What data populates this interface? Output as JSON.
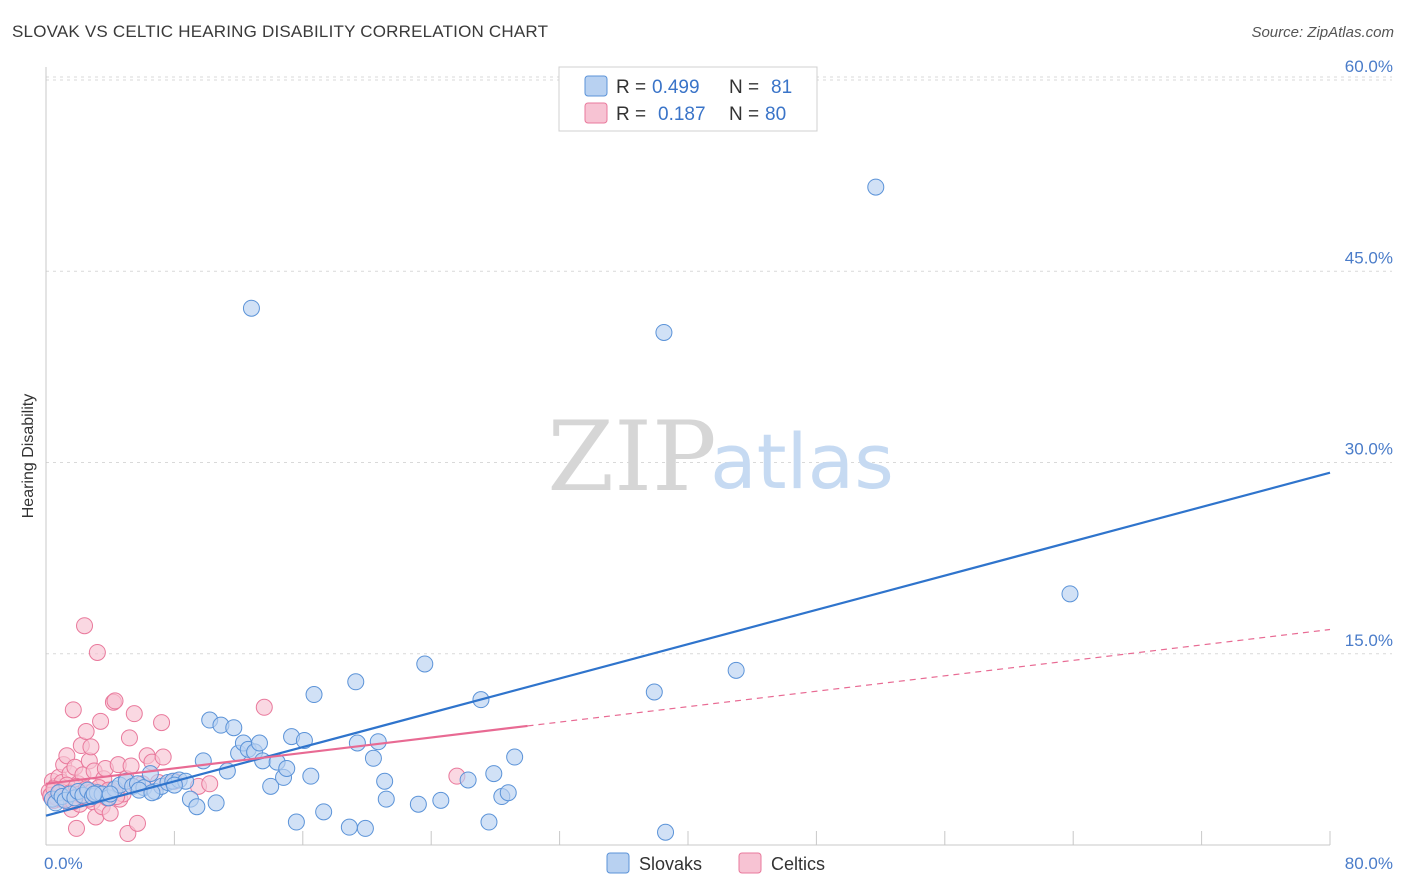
{
  "title": "SLOVAK VS CELTIC HEARING DISABILITY CORRELATION CHART",
  "source": "Source: ZipAtlas.com",
  "colors": {
    "blue": "#5b93d8",
    "blue_fill": "#b8d1f1",
    "blue_line": "#2f74cc",
    "pink": "#e9799c",
    "pink_fill": "#f7c3d3",
    "pink_line": "#e86a93",
    "axis_text": "#4a7cc9",
    "grid": "#d9d9d9"
  },
  "legend": {
    "rows": [
      {
        "r_label": "R =",
        "r_value": "0.499",
        "n_label": "N =",
        "n_value": "81"
      },
      {
        "r_label": "R =",
        "r_value": "0.187",
        "n_label": "N =",
        "n_value": "80"
      }
    ]
  },
  "watermark": {
    "zip": "ZIP",
    "atlas": "atlas"
  },
  "chart_data": {
    "type": "scatter",
    "title": "SLOVAK VS CELTIC HEARING DISABILITY CORRELATION CHART",
    "xlabel": "",
    "ylabel": "Hearing Disability",
    "xlim": [
      0,
      80
    ],
    "ylim": [
      0,
      60
    ],
    "x_tick_labels": [
      "0.0%",
      "80.0%"
    ],
    "y_ticks": [
      15,
      30,
      45,
      60
    ],
    "y_tick_labels": [
      "15.0%",
      "30.0%",
      "45.0%",
      "60.0%"
    ],
    "series": [
      {
        "name": "Slovaks",
        "trend": {
          "x": [
            0,
            80
          ],
          "y": [
            2.3,
            29.2
          ],
          "dashed_from": null
        },
        "points": [
          [
            0.4,
            3.6
          ],
          [
            0.6,
            3.3
          ],
          [
            0.8,
            4.1
          ],
          [
            1.0,
            3.8
          ],
          [
            1.2,
            3.5
          ],
          [
            1.5,
            4.0
          ],
          [
            1.8,
            3.7
          ],
          [
            2.0,
            4.2
          ],
          [
            2.3,
            3.9
          ],
          [
            2.6,
            4.3
          ],
          [
            2.9,
            3.8
          ],
          [
            3.2,
            4.1
          ],
          [
            3.5,
            4.0
          ],
          [
            3.9,
            3.7
          ],
          [
            4.3,
            4.4
          ],
          [
            4.6,
            4.7
          ],
          [
            5.0,
            5.0
          ],
          [
            5.4,
            4.6
          ],
          [
            5.7,
            4.8
          ],
          [
            6.1,
            4.5
          ],
          [
            6.5,
            5.6
          ],
          [
            6.8,
            4.2
          ],
          [
            7.2,
            4.6
          ],
          [
            7.6,
            4.9
          ],
          [
            7.9,
            5.0
          ],
          [
            8.3,
            5.1
          ],
          [
            8.7,
            5.0
          ],
          [
            9.0,
            3.6
          ],
          [
            9.4,
            3.0
          ],
          [
            9.8,
            6.6
          ],
          [
            10.2,
            9.8
          ],
          [
            10.6,
            3.3
          ],
          [
            10.9,
            9.4
          ],
          [
            11.3,
            5.8
          ],
          [
            11.7,
            9.2
          ],
          [
            12.0,
            7.2
          ],
          [
            12.3,
            8.0
          ],
          [
            12.6,
            7.5
          ],
          [
            13.0,
            7.3
          ],
          [
            13.5,
            6.6
          ],
          [
            14.0,
            4.6
          ],
          [
            14.4,
            6.5
          ],
          [
            14.8,
            5.3
          ],
          [
            15.0,
            6.0
          ],
          [
            15.3,
            8.5
          ],
          [
            15.6,
            1.8
          ],
          [
            16.1,
            8.2
          ],
          [
            16.5,
            5.4
          ],
          [
            16.7,
            11.8
          ],
          [
            17.3,
            2.6
          ],
          [
            18.9,
            1.4
          ],
          [
            19.4,
            8.0
          ],
          [
            19.3,
            12.8
          ],
          [
            19.9,
            1.3
          ],
          [
            20.4,
            6.8
          ],
          [
            20.7,
            8.1
          ],
          [
            21.1,
            5.0
          ],
          [
            21.2,
            3.6
          ],
          [
            23.2,
            3.2
          ],
          [
            23.6,
            14.2
          ],
          [
            24.6,
            3.5
          ],
          [
            26.3,
            5.1
          ],
          [
            27.1,
            11.4
          ],
          [
            27.6,
            1.8
          ],
          [
            27.9,
            5.6
          ],
          [
            28.4,
            3.8
          ],
          [
            28.8,
            4.1
          ],
          [
            29.2,
            6.9
          ],
          [
            12.8,
            42.1
          ],
          [
            37.9,
            12.0
          ],
          [
            38.5,
            40.2
          ],
          [
            43.0,
            13.7
          ],
          [
            51.7,
            51.6
          ],
          [
            63.8,
            19.7
          ],
          [
            38.6,
            1.0
          ],
          [
            13.3,
            8.0
          ],
          [
            3.0,
            4.0
          ],
          [
            5.8,
            4.3
          ],
          [
            8.0,
            4.7
          ],
          [
            4.0,
            4.0
          ],
          [
            6.6,
            4.1
          ]
        ]
      },
      {
        "name": "Celtics",
        "trend": {
          "x": [
            0,
            80
          ],
          "y": [
            4.8,
            16.9
          ],
          "dashed_from": 30
        },
        "points": [
          [
            0.2,
            4.2
          ],
          [
            0.3,
            3.8
          ],
          [
            0.4,
            5.0
          ],
          [
            0.5,
            3.5
          ],
          [
            0.6,
            4.6
          ],
          [
            0.7,
            4.0
          ],
          [
            0.8,
            5.3
          ],
          [
            0.9,
            3.6
          ],
          [
            1.0,
            4.9
          ],
          [
            1.1,
            6.3
          ],
          [
            1.2,
            4.4
          ],
          [
            1.3,
            7.0
          ],
          [
            1.4,
            3.9
          ],
          [
            1.5,
            5.6
          ],
          [
            1.6,
            2.8
          ],
          [
            1.7,
            10.6
          ],
          [
            1.8,
            6.1
          ],
          [
            1.9,
            1.3
          ],
          [
            2.0,
            4.8
          ],
          [
            2.1,
            3.2
          ],
          [
            2.2,
            7.8
          ],
          [
            2.3,
            5.5
          ],
          [
            2.4,
            17.2
          ],
          [
            2.5,
            8.9
          ],
          [
            2.6,
            4.1
          ],
          [
            2.7,
            6.6
          ],
          [
            2.8,
            7.7
          ],
          [
            2.9,
            3.4
          ],
          [
            3.0,
            5.8
          ],
          [
            3.1,
            2.2
          ],
          [
            3.2,
            15.1
          ],
          [
            3.3,
            4.5
          ],
          [
            3.4,
            9.7
          ],
          [
            3.5,
            3.0
          ],
          [
            3.6,
            5.2
          ],
          [
            3.7,
            6.0
          ],
          [
            3.8,
            3.7
          ],
          [
            4.0,
            2.5
          ],
          [
            4.1,
            4.3
          ],
          [
            4.2,
            11.2
          ],
          [
            4.3,
            11.3
          ],
          [
            4.5,
            6.3
          ],
          [
            4.6,
            3.6
          ],
          [
            4.8,
            4.0
          ],
          [
            5.0,
            5.2
          ],
          [
            5.1,
            0.9
          ],
          [
            5.2,
            8.4
          ],
          [
            5.3,
            6.2
          ],
          [
            5.5,
            10.3
          ],
          [
            5.7,
            1.7
          ],
          [
            6.0,
            4.8
          ],
          [
            6.3,
            7.0
          ],
          [
            6.6,
            6.5
          ],
          [
            7.0,
            4.9
          ],
          [
            7.2,
            9.6
          ],
          [
            7.3,
            6.9
          ],
          [
            8.0,
            5.0
          ],
          [
            9.5,
            4.6
          ],
          [
            10.2,
            4.8
          ],
          [
            13.6,
            10.8
          ],
          [
            25.6,
            5.4
          ],
          [
            0.3,
            3.9
          ],
          [
            0.5,
            4.4
          ],
          [
            0.7,
            3.7
          ],
          [
            0.9,
            4.2
          ],
          [
            1.1,
            3.6
          ],
          [
            1.3,
            4.7
          ],
          [
            1.5,
            4.1
          ],
          [
            1.7,
            3.4
          ],
          [
            1.9,
            4.6
          ],
          [
            2.1,
            4.0
          ],
          [
            2.3,
            3.8
          ],
          [
            2.5,
            4.4
          ],
          [
            2.7,
            3.6
          ],
          [
            2.9,
            4.2
          ],
          [
            3.1,
            3.9
          ],
          [
            3.3,
            4.5
          ],
          [
            3.5,
            4.0
          ],
          [
            3.9,
            4.3
          ],
          [
            4.4,
            3.8
          ]
        ]
      }
    ]
  },
  "bottom_legend": [
    {
      "label": "Slovaks"
    },
    {
      "label": "Celtics"
    }
  ]
}
